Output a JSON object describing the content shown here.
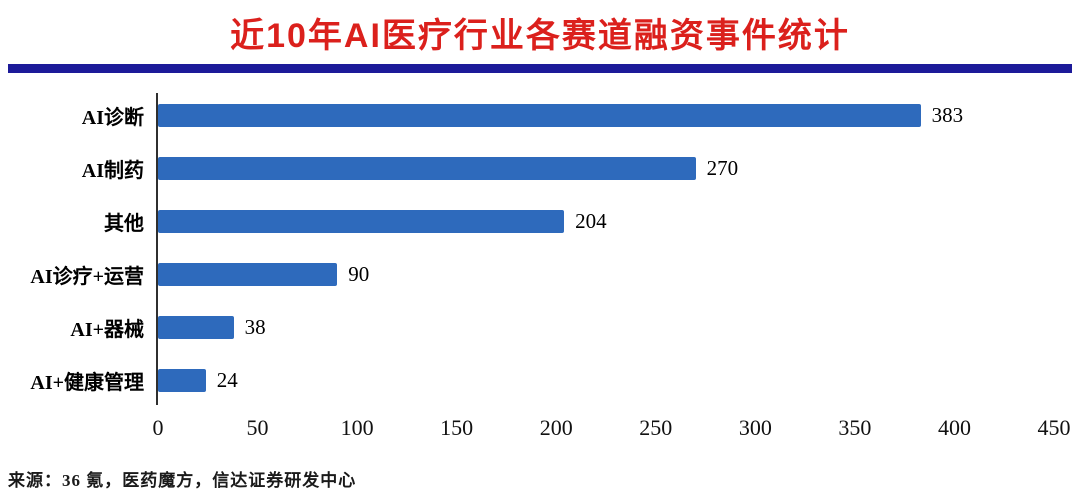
{
  "title": "近10年AI医疗行业各赛道融资事件统计",
  "source": "来源：36 氪，医药魔方，信达证券研发中心",
  "colors": {
    "title_red": "#db201c",
    "underline_blue": "#1c1a99",
    "bar_blue": "#2e6abc"
  },
  "chart_data": {
    "type": "bar",
    "orientation": "horizontal",
    "title": "近10年AI医疗行业各赛道融资事件统计",
    "categories": [
      "AI诊断",
      "AI制药",
      "其他",
      "AI诊疗+运营",
      "AI+器械",
      "AI+健康管理"
    ],
    "values": [
      383,
      270,
      204,
      90,
      38,
      24
    ],
    "xlabel": "",
    "ylabel": "",
    "xlim": [
      0,
      450
    ],
    "xticks": [
      0,
      50,
      100,
      150,
      200,
      250,
      300,
      350,
      400,
      450
    ],
    "grid": false,
    "legend": false,
    "value_labels": true
  }
}
